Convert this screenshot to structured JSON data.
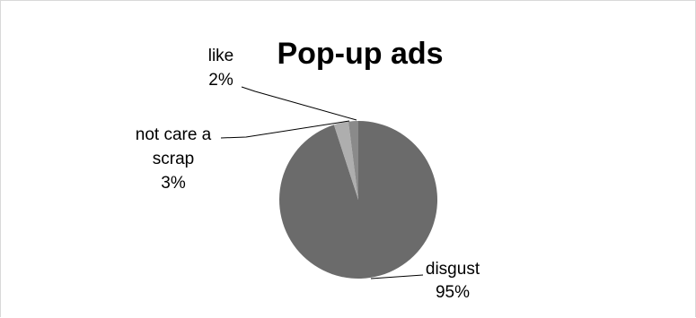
{
  "chart_data": {
    "type": "pie",
    "title": "Pop-up ads",
    "categories": [
      "disgust",
      "not care a scrap",
      "like"
    ],
    "values": [
      95,
      3,
      2
    ],
    "value_labels": [
      "95%",
      "3%",
      "2%"
    ],
    "label_lines": [
      [
        "disgust"
      ],
      [
        "not care a",
        "scrap"
      ],
      [
        "like"
      ]
    ],
    "colors": [
      "#6b6b6b",
      "#aeaeae",
      "#8a8a8a"
    ],
    "legend": "none",
    "data_labels": "outside-with-leader-lines"
  }
}
